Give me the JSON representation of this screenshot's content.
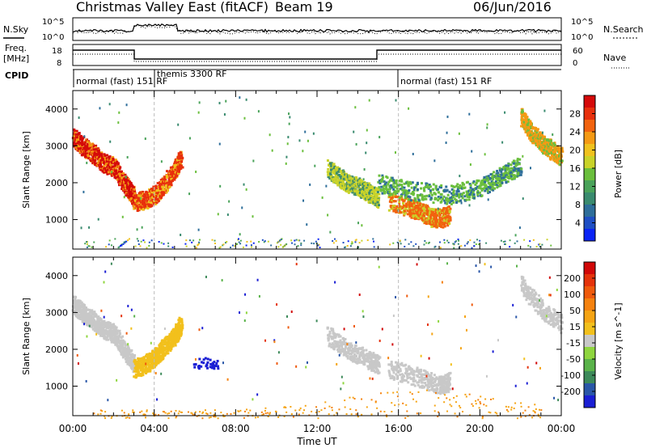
{
  "header": {
    "title": "Christmas Valley East (fitACF)",
    "beam": "Beam 19",
    "date": "06/Jun/2016"
  },
  "noise_panel": {
    "left_label": "N.Sky",
    "right_label": "N.Search",
    "left_ticks": [
      "10^5",
      "10^0"
    ],
    "right_ticks": [
      "10^5",
      "10^0"
    ]
  },
  "freq_panel": {
    "left_label_1": "Freq.",
    "left_label_2": "[MHz]",
    "right_label": "Nave",
    "left_ticks": [
      "18",
      "8"
    ],
    "right_ticks": [
      "60",
      "0"
    ]
  },
  "cpid_panel": {
    "label": "CPID",
    "segments": [
      {
        "start_hour": 0,
        "label": "normal (fast) 151 RF"
      },
      {
        "start_hour": 3.0,
        "label": "themis 3300 RF"
      },
      {
        "start_hour": 16.0,
        "label": "normal (fast) 151 RF"
      }
    ]
  },
  "chart_data": [
    {
      "type": "heatmap",
      "name": "power",
      "ylabel": "Slant Range [km]",
      "xlim": [
        0,
        24
      ],
      "ylim": [
        200,
        4500
      ],
      "yticks": [
        "1000",
        "2000",
        "3000",
        "4000"
      ],
      "colorbar": {
        "label": "Power [dB]",
        "ticks": [
          "4",
          "8",
          "12",
          "16",
          "20",
          "24",
          "28"
        ],
        "colors": [
          "#0b24f5",
          "#1f4fc4",
          "#2e6e9a",
          "#3a8b6f",
          "#4aa35a",
          "#6bbf3d",
          "#c9d32a",
          "#f0c21e",
          "#f59a14",
          "#f2630f",
          "#e8300d",
          "#d50a0a"
        ]
      },
      "features": [
        {
          "kind": "curve",
          "points": [
            [
              0.0,
              3250
            ],
            [
              0.5,
              3000
            ],
            [
              1.0,
              2800
            ],
            [
              1.5,
              2550
            ],
            [
              2.0,
              2450
            ],
            [
              2.5,
              2000
            ],
            [
              2.8,
              1800
            ],
            [
              3.0,
              1600
            ]
          ],
          "color_level": 11
        },
        {
          "kind": "curve",
          "points": [
            [
              3.0,
              1500
            ],
            [
              3.5,
              1550
            ],
            [
              4.0,
              1700
            ],
            [
              4.5,
              2000
            ],
            [
              5.0,
              2400
            ],
            [
              5.3,
              2700
            ]
          ],
          "color_level": 10
        },
        {
          "kind": "curve",
          "points": [
            [
              12.5,
              2400
            ],
            [
              13.0,
              2200
            ],
            [
              13.5,
              2000
            ],
            [
              14.0,
              1900
            ],
            [
              14.5,
              1750
            ],
            [
              15.0,
              1600
            ]
          ],
          "color_level": 6
        },
        {
          "kind": "curve",
          "points": [
            [
              15.5,
              1500
            ],
            [
              16.5,
              1350
            ],
            [
              17.0,
              1250
            ],
            [
              17.5,
              1100
            ],
            [
              18.0,
              1050
            ],
            [
              18.5,
              1150
            ]
          ],
          "color_level": 9
        },
        {
          "kind": "curve",
          "points": [
            [
              15.0,
              2000
            ],
            [
              16.5,
              1800
            ],
            [
              18.5,
              1700
            ],
            [
              20.0,
              1900
            ],
            [
              21.0,
              2200
            ],
            [
              22.0,
              2500
            ]
          ],
          "color_level": 5
        },
        {
          "kind": "curve",
          "points": [
            [
              22.0,
              3800
            ],
            [
              22.5,
              3400
            ],
            [
              23.0,
              3100
            ],
            [
              23.5,
              2900
            ],
            [
              24.0,
              2700
            ]
          ],
          "color_level": 8
        }
      ]
    },
    {
      "type": "heatmap",
      "name": "velocity",
      "xlabel": "Time UT",
      "ylabel": "Slant Range [km]",
      "xlim": [
        0,
        24
      ],
      "ylim": [
        200,
        4500
      ],
      "xticks": [
        "00:00",
        "04:00",
        "08:00",
        "12:00",
        "16:00",
        "20:00",
        "00:00"
      ],
      "yticks": [
        "1000",
        "2000",
        "3000",
        "4000"
      ],
      "colorbar": {
        "label": "Velocity [m s^-1]",
        "ticks": [
          "200",
          "100",
          "50",
          "15",
          "-15",
          "-50",
          "-100",
          "-200"
        ],
        "colors": [
          "#1b1fd4",
          "#2a57a8",
          "#3d8a5a",
          "#5ab34a",
          "#8fd63f",
          "#c8c8c8",
          "#f2c01c",
          "#f5a414",
          "#f5820f",
          "#ef5a0c",
          "#e5330b",
          "#d10808"
        ]
      },
      "features": [
        {
          "kind": "curve",
          "points": [
            [
              0.0,
              3250
            ],
            [
              0.5,
              3000
            ],
            [
              1.0,
              2800
            ],
            [
              1.5,
              2550
            ],
            [
              2.0,
              2450
            ],
            [
              2.5,
              2000
            ],
            [
              3.0,
              1600
            ]
          ],
          "color_level": 5
        },
        {
          "kind": "curve",
          "points": [
            [
              3.0,
              1500
            ],
            [
              3.5,
              1600
            ],
            [
              4.0,
              1800
            ],
            [
              4.5,
              2100
            ],
            [
              5.0,
              2400
            ],
            [
              5.3,
              2700
            ]
          ],
          "color_level": 6
        },
        {
          "kind": "blob",
          "center": [
            6.5,
            1650
          ],
          "color_level": 0
        },
        {
          "kind": "curve",
          "points": [
            [
              12.5,
              2400
            ],
            [
              13.5,
              2000
            ],
            [
              14.5,
              1750
            ],
            [
              15.0,
              1600
            ]
          ],
          "color_level": 5
        },
        {
          "kind": "curve",
          "points": [
            [
              15.5,
              1500
            ],
            [
              17.0,
              1250
            ],
            [
              18.0,
              1050
            ],
            [
              18.5,
              1150
            ]
          ],
          "color_level": 5
        },
        {
          "kind": "curve",
          "points": [
            [
              22.0,
              3800
            ],
            [
              23.0,
              3100
            ],
            [
              24.0,
              2700
            ]
          ],
          "color_level": 5
        },
        {
          "kind": "ground",
          "range": [
            150,
            700
          ],
          "color_level": 7
        }
      ]
    }
  ]
}
